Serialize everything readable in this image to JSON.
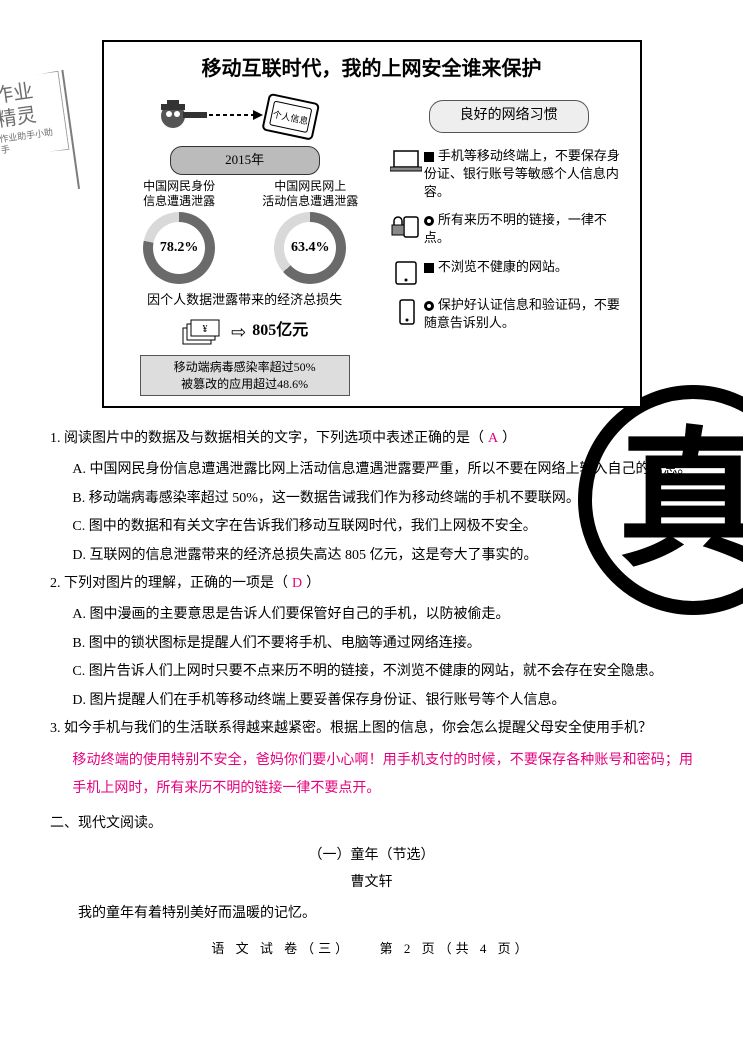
{
  "watermark": {
    "flag_line1": "作业",
    "flag_line2": "精灵",
    "flag_small": "作业助手小助手",
    "zhen": "真"
  },
  "infographic": {
    "title": "移动互联时代，我的上网安全谁来保护",
    "year": "2015年",
    "left_stats": {
      "label1": "中国网民身份\n信息遭遇泄露",
      "label2": "中国网民网上\n活动信息遭遇泄露",
      "pct1": "78.2%",
      "pct2": "63.4%",
      "pct1_val": 78.2,
      "pct2_val": 63.4,
      "donut_fill": "#6a6a6a",
      "donut_track": "#d9d9d9"
    },
    "loss_caption": "因个人数据泄露带来的经济总损失",
    "loss_amount": "805亿元",
    "virus_line1": "移动端病毒感染率超过50%",
    "virus_line2": "被篡改的应用超过48.6%",
    "tips_header": "良好的网络习惯",
    "tips": [
      "手机等移动终端上，不要保存身份证、银行账号等敏感个人信息内容。",
      "所有来历不明的链接，一律不点。",
      "不浏览不健康的网站。",
      "保护好认证信息和验证码，不要随意告诉别人。"
    ]
  },
  "q1": {
    "stem": "1. 阅读图片中的数据及与数据相关的文字，下列选项中表述正确的是（",
    "answer": "A",
    "stem_close": "）",
    "A": "A. 中国网民身份信息遭遇泄露比网上活动信息遭遇泄露要严重，所以不要在网络上输入自己的信息。",
    "B": "B. 移动端病毒感染率超过 50%，这一数据告诫我们作为移动终端的手机不要联网。",
    "C": "C. 图中的数据和有关文字在告诉我们移动互联网时代，我们上网极不安全。",
    "D": "D. 互联网的信息泄露带来的经济总损失高达 805 亿元，这是夸大了事实的。"
  },
  "q2": {
    "stem": "2. 下列对图片的理解，正确的一项是（",
    "answer": "D",
    "stem_close": "）",
    "A": "A. 图中漫画的主要意思是告诉人们要保管好自己的手机，以防被偷走。",
    "B": "B. 图中的锁状图标是提醒人们不要将手机、电脑等通过网络连接。",
    "C": "C. 图片告诉人们上网时只要不点来历不明的链接，不浏览不健康的网站，就不会存在安全隐患。",
    "D": "D. 图片提醒人们在手机等移动终端上要妥善保存身份证、银行账号等个人信息。"
  },
  "q3": {
    "stem": "3. 如今手机与我们的生活联系得越来越紧密。根据上图的信息，你会怎么提醒父母安全使用手机？",
    "answer_text": "移动终端的使用特别不安全，爸妈你们要小心啊！用手机支付的时候，不要保存各种账号和密码；用手机上网时，所有来历不明的链接一律不要点开。"
  },
  "section2": "二、现代文阅读。",
  "reading": {
    "title": "（一）童年（节选）",
    "author": "曹文轩",
    "para1": "我的童年有着特别美好而温暖的记忆。"
  },
  "footer": "语 文 试 卷（三）　　第 2 页（共 4 页）"
}
